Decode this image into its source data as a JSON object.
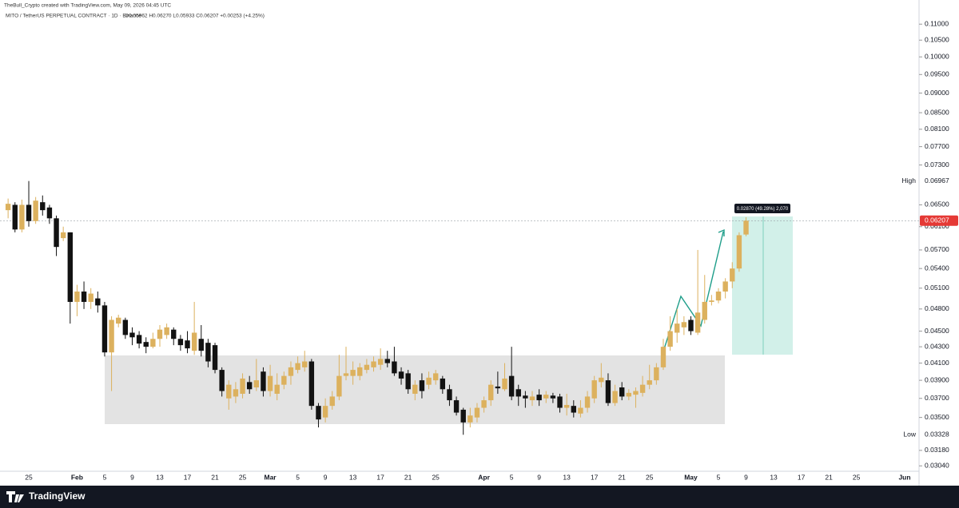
{
  "chart_data": {
    "type": "candlestick",
    "title": "TheBull_Crypto created with TradingView.com, May 09, 2026 04:45 UTC",
    "subtitle": "MITO / TetherUS PERPETUAL CONTRACT · 1D · Binance",
    "ohlc_label": "O0.05962 H0.06270 L0.05933 C0.06207 +0.00253 (+4.25%)",
    "log_scale": true,
    "bull_color": "#dcb15e",
    "bear_color": "#121212",
    "ylim": [
      0.02958,
      0.1153
    ],
    "yticks": [
      {
        "value": 0.11,
        "label": "0.11000"
      },
      {
        "value": 0.105,
        "label": "0.10500"
      },
      {
        "value": 0.1,
        "label": "0.10000"
      },
      {
        "value": 0.095,
        "label": "0.09500"
      },
      {
        "value": 0.09,
        "label": "0.09000"
      },
      {
        "value": 0.085,
        "label": "0.08500"
      },
      {
        "value": 0.081,
        "label": "0.08100"
      },
      {
        "value": 0.077,
        "label": "0.07700"
      },
      {
        "value": 0.073,
        "label": "0.07300"
      },
      {
        "value": 0.065,
        "label": "0.06500"
      },
      {
        "value": 0.061,
        "label": "0.06100"
      },
      {
        "value": 0.057,
        "label": "0.05700"
      },
      {
        "value": 0.054,
        "label": "0.05400"
      },
      {
        "value": 0.051,
        "label": "0.05100"
      },
      {
        "value": 0.048,
        "label": "0.04800"
      },
      {
        "value": 0.045,
        "label": "0.04500"
      },
      {
        "value": 0.043,
        "label": "0.04300"
      },
      {
        "value": 0.041,
        "label": "0.04100"
      },
      {
        "value": 0.039,
        "label": "0.03900"
      },
      {
        "value": 0.037,
        "label": "0.03700"
      },
      {
        "value": 0.035,
        "label": "0.03500"
      },
      {
        "value": 0.0318,
        "label": "0.03180"
      },
      {
        "value": 0.0304,
        "label": "0.03040"
      }
    ],
    "price_labels": [
      {
        "name": "High",
        "value": 0.06967,
        "label": "0.06967"
      },
      {
        "name": "Low",
        "value": 0.03328,
        "label": "0.03328"
      }
    ],
    "last_price": {
      "value": 0.06207,
      "label": "0.06207"
    },
    "measure_label": "0.02870 (49.28%) 2,070",
    "categories": [
      null,
      null,
      null,
      null,
      "25",
      null,
      null,
      null,
      null,
      null,
      null,
      "Feb",
      null,
      null,
      null,
      "5",
      null,
      null,
      null,
      "9",
      null,
      null,
      null,
      "13",
      null,
      null,
      null,
      "17",
      null,
      null,
      null,
      "21",
      null,
      null,
      null,
      "25",
      null,
      null,
      null,
      "Mar",
      null,
      null,
      null,
      "5",
      null,
      null,
      null,
      "9",
      null,
      null,
      null,
      "13",
      null,
      null,
      null,
      "17",
      null,
      null,
      null,
      "21",
      null,
      null,
      null,
      "25",
      null,
      null,
      null,
      null,
      null,
      null,
      "Apr",
      null,
      null,
      null,
      "5",
      null,
      null,
      null,
      "9",
      null,
      null,
      null,
      "13",
      null,
      null,
      null,
      "17",
      null,
      null,
      null,
      "21",
      null,
      null,
      null,
      "25",
      null,
      null,
      null,
      null,
      null,
      "May",
      null,
      null,
      null,
      "5",
      null,
      null,
      null,
      "9",
      null,
      null,
      null,
      "13",
      null,
      null,
      null,
      "17",
      null,
      null,
      null,
      "21",
      null,
      null,
      null,
      "25",
      null,
      null,
      null,
      null,
      null,
      null,
      "Jun",
      null
    ],
    "open": [
      null,
      0.064,
      0.065,
      0.0605,
      0.065,
      0.062,
      0.0655,
      0.0645,
      0.0625,
      0.059,
      0.06,
      0.049,
      0.0505,
      0.049,
      0.0495,
      0.0485,
      0.0423,
      0.046,
      0.0465,
      0.0448,
      0.0445,
      0.0436,
      0.043,
      0.044,
      0.0445,
      0.0452,
      0.044,
      0.0438,
      0.0425,
      0.044,
      0.0435,
      0.0432,
      0.0402,
      0.037,
      0.0372,
      0.0375,
      0.0388,
      0.0382,
      0.04,
      0.0378,
      0.0375,
      0.0385,
      0.0395,
      0.0402,
      0.0405,
      0.0412,
      0.0362,
      0.035,
      0.0362,
      0.0372,
      0.0395,
      0.0395,
      0.0395,
      0.0402,
      0.0405,
      0.0408,
      0.0415,
      0.0412,
      0.04,
      0.0398,
      0.0375,
      0.039,
      0.0385,
      0.039,
      0.0392,
      0.038,
      0.0368,
      0.0358,
      0.0345,
      0.035,
      0.036,
      0.0368,
      0.0383,
      0.038,
      0.0395,
      0.038,
      0.0373,
      0.0368,
      0.0374,
      0.037,
      0.0373,
      0.0372,
      0.036,
      0.0362,
      0.0354,
      0.036,
      0.037,
      0.0388,
      0.039,
      0.0365,
      0.0382,
      0.0372,
      0.0374,
      0.0376,
      0.0385,
      0.039,
      0.0405,
      0.043,
      0.0448,
      0.0455,
      0.0465,
      0.0448,
      0.0465,
      0.049,
      0.0492,
      0.0505,
      0.052,
      0.054,
      0.05962,
      null,
      null,
      null,
      null,
      null,
      null,
      null,
      null,
      null,
      null,
      null,
      null,
      null,
      null,
      null,
      null,
      null,
      null,
      null,
      null,
      null,
      null,
      null,
      null
    ],
    "high": [
      null,
      0.0662,
      0.0655,
      0.066,
      0.06967,
      0.0665,
      0.0668,
      0.065,
      0.063,
      0.061,
      0.06,
      0.0515,
      0.052,
      0.051,
      0.0505,
      0.049,
      0.047,
      0.0472,
      0.0468,
      0.0455,
      0.045,
      0.0442,
      0.0448,
      0.0458,
      0.046,
      0.0455,
      0.0445,
      0.045,
      0.049,
      0.0458,
      0.044,
      0.0435,
      0.0405,
      0.039,
      0.0388,
      0.0398,
      0.0395,
      0.0415,
      0.0405,
      0.0408,
      0.0398,
      0.04,
      0.0412,
      0.0418,
      0.0425,
      0.0415,
      0.0365,
      0.037,
      0.0378,
      0.042,
      0.043,
      0.0412,
      0.041,
      0.0415,
      0.0418,
      0.0428,
      0.0425,
      0.043,
      0.0405,
      0.0402,
      0.039,
      0.0398,
      0.04,
      0.0402,
      0.0395,
      0.0385,
      0.0372,
      0.036,
      0.036,
      0.0365,
      0.0372,
      0.039,
      0.04,
      0.041,
      0.043,
      0.0385,
      0.0378,
      0.0378,
      0.038,
      0.0378,
      0.0376,
      0.0375,
      0.0375,
      0.0368,
      0.0368,
      0.0378,
      0.0395,
      0.041,
      0.0398,
      0.0385,
      0.0388,
      0.038,
      0.0382,
      0.0395,
      0.0408,
      0.041,
      0.044,
      0.047,
      0.048,
      0.047,
      0.047,
      0.057,
      0.053,
      0.05,
      0.051,
      0.0525,
      0.055,
      0.06,
      0.0627,
      null,
      null,
      null,
      null,
      null,
      null,
      null,
      null,
      null,
      null,
      null,
      null,
      null,
      null,
      null,
      null,
      null,
      null,
      null,
      null,
      null,
      null,
      null,
      null
    ],
    "low": [
      null,
      0.0625,
      0.06,
      0.06,
      0.061,
      0.0615,
      0.063,
      0.0615,
      0.056,
      0.0585,
      0.046,
      0.047,
      0.048,
      0.048,
      0.0475,
      0.0418,
      0.0378,
      0.0455,
      0.044,
      0.0432,
      0.0428,
      0.0422,
      0.0428,
      0.043,
      0.044,
      0.0432,
      0.0425,
      0.0422,
      0.042,
      0.0418,
      0.0405,
      0.0398,
      0.0372,
      0.0358,
      0.0365,
      0.037,
      0.0375,
      0.0378,
      0.0372,
      0.0372,
      0.0368,
      0.038,
      0.0385,
      0.0398,
      0.04,
      0.0358,
      0.034,
      0.0345,
      0.0358,
      0.0368,
      0.039,
      0.0385,
      0.039,
      0.0398,
      0.04,
      0.0402,
      0.0405,
      0.0395,
      0.0385,
      0.0375,
      0.0368,
      0.037,
      0.038,
      0.0385,
      0.0375,
      0.0362,
      0.0352,
      0.03328,
      0.034,
      0.0345,
      0.0355,
      0.0362,
      0.0375,
      0.0378,
      0.0368,
      0.0362,
      0.036,
      0.0362,
      0.0362,
      0.0365,
      0.0365,
      0.0355,
      0.0352,
      0.035,
      0.035,
      0.0355,
      0.0365,
      0.0382,
      0.0362,
      0.0362,
      0.0368,
      0.0368,
      0.036,
      0.0372,
      0.038,
      0.0385,
      0.0402,
      0.0425,
      0.0435,
      0.0445,
      0.0445,
      0.0445,
      0.046,
      0.0485,
      0.0488,
      0.0495,
      0.051,
      0.0535,
      0.05933,
      null,
      null,
      null,
      null,
      null,
      null,
      null,
      null,
      null,
      null,
      null,
      null,
      null,
      null,
      null,
      null,
      null,
      null,
      null,
      null,
      null,
      null,
      null,
      null
    ],
    "close": [
      null,
      0.0652,
      0.0605,
      0.065,
      0.062,
      0.0658,
      0.064,
      0.0625,
      0.0575,
      0.06,
      0.049,
      0.0505,
      0.049,
      0.0502,
      0.0485,
      0.0423,
      0.0465,
      0.0468,
      0.0445,
      0.0442,
      0.0434,
      0.043,
      0.044,
      0.0452,
      0.0455,
      0.044,
      0.0432,
      0.0428,
      0.0448,
      0.0425,
      0.0412,
      0.0402,
      0.0378,
      0.0385,
      0.038,
      0.0392,
      0.038,
      0.039,
      0.0378,
      0.0395,
      0.0385,
      0.0395,
      0.0405,
      0.041,
      0.0412,
      0.0362,
      0.0348,
      0.0362,
      0.0372,
      0.0395,
      0.0398,
      0.0402,
      0.0405,
      0.0408,
      0.0412,
      0.0415,
      0.041,
      0.0398,
      0.0392,
      0.038,
      0.0385,
      0.0378,
      0.0393,
      0.0398,
      0.038,
      0.0368,
      0.0355,
      0.0345,
      0.0352,
      0.036,
      0.0368,
      0.0385,
      0.0381,
      0.0392,
      0.0372,
      0.0372,
      0.037,
      0.0372,
      0.0368,
      0.0374,
      0.037,
      0.036,
      0.0363,
      0.0355,
      0.036,
      0.0372,
      0.039,
      0.0393,
      0.0365,
      0.0378,
      0.0372,
      0.0376,
      0.0378,
      0.0385,
      0.039,
      0.0405,
      0.043,
      0.045,
      0.046,
      0.0462,
      0.045,
      0.0475,
      0.049,
      0.0492,
      0.0505,
      0.052,
      0.054,
      0.0595,
      0.06207,
      null,
      null,
      null,
      null,
      null,
      null,
      null,
      null,
      null,
      null,
      null,
      null,
      null,
      null,
      null,
      null,
      null,
      null,
      null,
      null,
      null,
      null,
      null,
      null
    ],
    "footer": "TradingView"
  }
}
